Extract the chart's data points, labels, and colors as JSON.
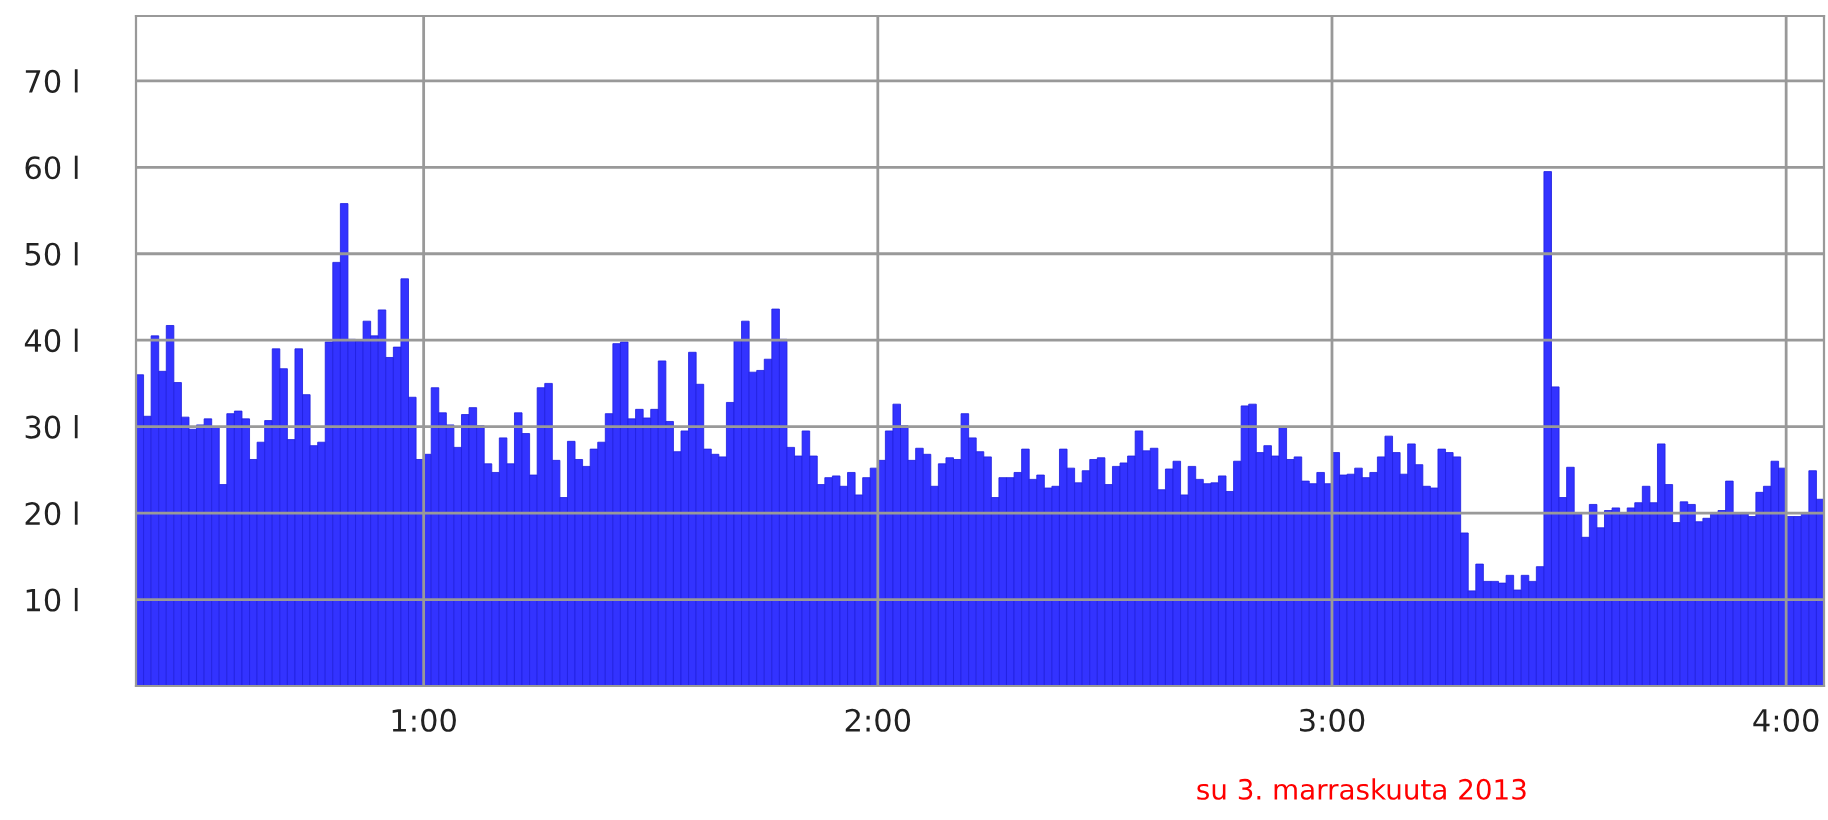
{
  "chart_data": {
    "type": "bar",
    "x": [
      "2013-11-03T00:22",
      "2013-11-03T00:23",
      "2013-11-03T00:24",
      "2013-11-03T00:25",
      "2013-11-03T00:26",
      "2013-11-03T00:27",
      "2013-11-03T00:28",
      "2013-11-03T00:29",
      "2013-11-03T00:30",
      "2013-11-03T00:31",
      "2013-11-03T00:32",
      "2013-11-03T00:33",
      "2013-11-03T00:34",
      "2013-11-03T00:35",
      "2013-11-03T00:36",
      "2013-11-03T00:37",
      "2013-11-03T00:38",
      "2013-11-03T00:39",
      "2013-11-03T00:40",
      "2013-11-03T00:41",
      "2013-11-03T00:42",
      "2013-11-03T00:43",
      "2013-11-03T00:44",
      "2013-11-03T00:45",
      "2013-11-03T00:46",
      "2013-11-03T00:47",
      "2013-11-03T00:48",
      "2013-11-03T00:49",
      "2013-11-03T00:50",
      "2013-11-03T00:51",
      "2013-11-03T00:52",
      "2013-11-03T00:53",
      "2013-11-03T00:54",
      "2013-11-03T00:55",
      "2013-11-03T00:56",
      "2013-11-03T00:57",
      "2013-11-03T00:58",
      "2013-11-03T00:59",
      "2013-11-03T01:00",
      "2013-11-03T01:01",
      "2013-11-03T01:02",
      "2013-11-03T01:03",
      "2013-11-03T01:04",
      "2013-11-03T01:05",
      "2013-11-03T01:06",
      "2013-11-03T01:07",
      "2013-11-03T01:08",
      "2013-11-03T01:09",
      "2013-11-03T01:10",
      "2013-11-03T01:11",
      "2013-11-03T01:12",
      "2013-11-03T01:13",
      "2013-11-03T01:14",
      "2013-11-03T01:15",
      "2013-11-03T01:16",
      "2013-11-03T01:17",
      "2013-11-03T01:18",
      "2013-11-03T01:19",
      "2013-11-03T01:20",
      "2013-11-03T01:21",
      "2013-11-03T01:22",
      "2013-11-03T01:23",
      "2013-11-03T01:24",
      "2013-11-03T01:25",
      "2013-11-03T01:26",
      "2013-11-03T01:27",
      "2013-11-03T01:28",
      "2013-11-03T01:29",
      "2013-11-03T01:30",
      "2013-11-03T01:31",
      "2013-11-03T01:32",
      "2013-11-03T01:33",
      "2013-11-03T01:34",
      "2013-11-03T01:35",
      "2013-11-03T01:36",
      "2013-11-03T01:37",
      "2013-11-03T01:38",
      "2013-11-03T01:39",
      "2013-11-03T01:40",
      "2013-11-03T01:41",
      "2013-11-03T01:42",
      "2013-11-03T01:43",
      "2013-11-03T01:44",
      "2013-11-03T01:45",
      "2013-11-03T01:46",
      "2013-11-03T01:47",
      "2013-11-03T01:48",
      "2013-11-03T01:49",
      "2013-11-03T01:50",
      "2013-11-03T01:51",
      "2013-11-03T01:52",
      "2013-11-03T01:53",
      "2013-11-03T01:54",
      "2013-11-03T01:55",
      "2013-11-03T01:56",
      "2013-11-03T01:57",
      "2013-11-03T01:58",
      "2013-11-03T01:59",
      "2013-11-03T02:00",
      "2013-11-03T02:01",
      "2013-11-03T02:02",
      "2013-11-03T02:03",
      "2013-11-03T02:04",
      "2013-11-03T02:05",
      "2013-11-03T02:06",
      "2013-11-03T02:07",
      "2013-11-03T02:08",
      "2013-11-03T02:09",
      "2013-11-03T02:10",
      "2013-11-03T02:11",
      "2013-11-03T02:12",
      "2013-11-03T02:13",
      "2013-11-03T02:14",
      "2013-11-03T02:15",
      "2013-11-03T02:16",
      "2013-11-03T02:17",
      "2013-11-03T02:18",
      "2013-11-03T02:19",
      "2013-11-03T02:20",
      "2013-11-03T02:21",
      "2013-11-03T02:22",
      "2013-11-03T02:23",
      "2013-11-03T02:24",
      "2013-11-03T02:25",
      "2013-11-03T02:26",
      "2013-11-03T02:27",
      "2013-11-03T02:28",
      "2013-11-03T02:29",
      "2013-11-03T02:30",
      "2013-11-03T02:31",
      "2013-11-03T02:32",
      "2013-11-03T02:33",
      "2013-11-03T02:34",
      "2013-11-03T02:35",
      "2013-11-03T02:36",
      "2013-11-03T02:37",
      "2013-11-03T02:38",
      "2013-11-03T02:39",
      "2013-11-03T02:40",
      "2013-11-03T02:41",
      "2013-11-03T02:42",
      "2013-11-03T02:43",
      "2013-11-03T02:44",
      "2013-11-03T02:45",
      "2013-11-03T02:46",
      "2013-11-03T02:47",
      "2013-11-03T02:48",
      "2013-11-03T02:49",
      "2013-11-03T02:50",
      "2013-11-03T02:51",
      "2013-11-03T02:52",
      "2013-11-03T02:53",
      "2013-11-03T02:54",
      "2013-11-03T02:55",
      "2013-11-03T02:56",
      "2013-11-03T02:57",
      "2013-11-03T02:58",
      "2013-11-03T02:59",
      "2013-11-03T03:00",
      "2013-11-03T03:01",
      "2013-11-03T03:02",
      "2013-11-03T03:03",
      "2013-11-03T03:04",
      "2013-11-03T03:05",
      "2013-11-03T03:06",
      "2013-11-03T03:07",
      "2013-11-03T03:08",
      "2013-11-03T03:09",
      "2013-11-03T03:10",
      "2013-11-03T03:11",
      "2013-11-03T03:12",
      "2013-11-03T03:13",
      "2013-11-03T03:14",
      "2013-11-03T03:15",
      "2013-11-03T03:16",
      "2013-11-03T03:17",
      "2013-11-03T03:18",
      "2013-11-03T03:19",
      "2013-11-03T03:20",
      "2013-11-03T03:21",
      "2013-11-03T03:22",
      "2013-11-03T03:23",
      "2013-11-03T03:24",
      "2013-11-03T03:25",
      "2013-11-03T03:26",
      "2013-11-03T03:27",
      "2013-11-03T03:28",
      "2013-11-03T03:29",
      "2013-11-03T03:30",
      "2013-11-03T03:31",
      "2013-11-03T03:32",
      "2013-11-03T03:33",
      "2013-11-03T03:34",
      "2013-11-03T03:35",
      "2013-11-03T03:36",
      "2013-11-03T03:37",
      "2013-11-03T03:38",
      "2013-11-03T03:39",
      "2013-11-03T03:40",
      "2013-11-03T03:41",
      "2013-11-03T03:42",
      "2013-11-03T03:43",
      "2013-11-03T03:44",
      "2013-11-03T03:45",
      "2013-11-03T03:46",
      "2013-11-03T03:47",
      "2013-11-03T03:48",
      "2013-11-03T03:49",
      "2013-11-03T03:50",
      "2013-11-03T03:51",
      "2013-11-03T03:52",
      "2013-11-03T03:53",
      "2013-11-03T03:54",
      "2013-11-03T03:55",
      "2013-11-03T03:56",
      "2013-11-03T03:57",
      "2013-11-03T03:58",
      "2013-11-03T03:59",
      "2013-11-03T04:00",
      "2013-11-03T04:01",
      "2013-11-03T04:02",
      "2013-11-03T04:03",
      "2013-11-03T04:04"
    ],
    "series": [
      {
        "color": "#3333ff",
        "values": [
          36.0,
          31.2,
          40.5,
          36.4,
          41.7,
          35.1,
          31.1,
          29.7,
          30.2,
          30.9,
          29.9,
          23.3,
          31.5,
          31.8,
          30.9,
          26.2,
          28.2,
          30.7,
          39.0,
          36.7,
          28.5,
          39.0,
          33.7,
          27.8,
          28.2,
          39.8,
          49.0,
          55.8,
          40.1,
          39.9,
          42.2,
          40.5,
          43.5,
          38.0,
          39.2,
          47.1,
          33.4,
          26.2,
          26.8,
          34.5,
          31.6,
          30.2,
          27.6,
          31.4,
          32.2,
          30.1,
          25.7,
          24.7,
          28.7,
          25.7,
          31.6,
          29.2,
          24.4,
          34.5,
          35.0,
          26.1,
          21.8,
          28.3,
          26.2,
          25.4,
          27.4,
          28.2,
          31.5,
          39.6,
          39.8,
          30.9,
          32.0,
          31.0,
          32.0,
          37.6,
          30.6,
          27.1,
          29.5,
          38.6,
          34.9,
          27.4,
          26.8,
          26.5,
          32.8,
          40.0,
          42.2,
          36.3,
          36.5,
          37.8,
          43.6,
          40.1,
          27.6,
          26.6,
          29.5,
          26.6,
          23.3,
          24.1,
          24.3,
          23.1,
          24.7,
          22.1,
          24.1,
          25.2,
          26.1,
          29.5,
          32.6,
          30.1,
          26.1,
          27.5,
          26.8,
          23.1,
          25.7,
          26.4,
          26.2,
          31.5,
          28.7,
          27.1,
          26.5,
          21.8,
          24.1,
          24.1,
          24.7,
          27.4,
          23.9,
          24.4,
          22.9,
          23.1,
          27.4,
          25.2,
          23.5,
          24.9,
          26.2,
          26.4,
          23.3,
          25.4,
          25.8,
          26.6,
          29.5,
          27.2,
          27.5,
          22.7,
          25.1,
          26.0,
          22.1,
          25.4,
          23.9,
          23.4,
          23.5,
          24.3,
          22.5,
          26.0,
          32.4,
          32.6,
          27.0,
          27.8,
          26.6,
          29.9,
          26.2,
          26.5,
          23.7,
          23.4,
          24.7,
          23.4,
          27.0,
          24.4,
          24.5,
          25.2,
          24.1,
          24.7,
          26.5,
          28.9,
          27.0,
          24.5,
          28.0,
          25.6,
          23.1,
          22.9,
          27.4,
          27.0,
          26.5,
          17.7,
          11.0,
          14.1,
          12.1,
          12.1,
          11.9,
          12.8,
          11.1,
          12.8,
          12.1,
          13.8,
          59.5,
          34.6,
          21.8,
          25.3,
          20.0,
          17.2,
          21.0,
          18.3,
          20.3,
          20.6,
          19.9,
          20.6,
          21.2,
          23.1,
          21.2,
          28.0,
          23.3,
          18.9,
          21.3,
          21.0,
          19.0,
          19.4,
          20.0,
          20.3,
          23.7,
          20.0,
          19.9,
          19.6,
          22.4,
          23.1,
          26.0,
          25.2,
          19.6,
          19.6,
          20.0,
          24.9,
          21.6
        ]
      }
    ],
    "xlim": [
      "2013-11-03T00:22",
      "2013-11-03T04:05"
    ],
    "xticks": [
      {
        "value": "2013-11-03T01:00",
        "label": "1:00"
      },
      {
        "value": "2013-11-03T02:00",
        "label": "2:00"
      },
      {
        "value": "2013-11-03T03:00",
        "label": "3:00"
      },
      {
        "value": "2013-11-03T04:00",
        "label": "4:00"
      }
    ],
    "ylim": [
      0,
      77.5
    ],
    "yticks": [
      {
        "value": 10,
        "label": "10 l"
      },
      {
        "value": 20,
        "label": "20 l"
      },
      {
        "value": 30,
        "label": "30 l"
      },
      {
        "value": 40,
        "label": "40 l"
      },
      {
        "value": 50,
        "label": "50 l"
      },
      {
        "value": 60,
        "label": "60 l"
      },
      {
        "value": 70,
        "label": "70 l"
      }
    ],
    "grid": true,
    "annotations": [
      "su 3. marraskuuta 2013"
    ]
  }
}
